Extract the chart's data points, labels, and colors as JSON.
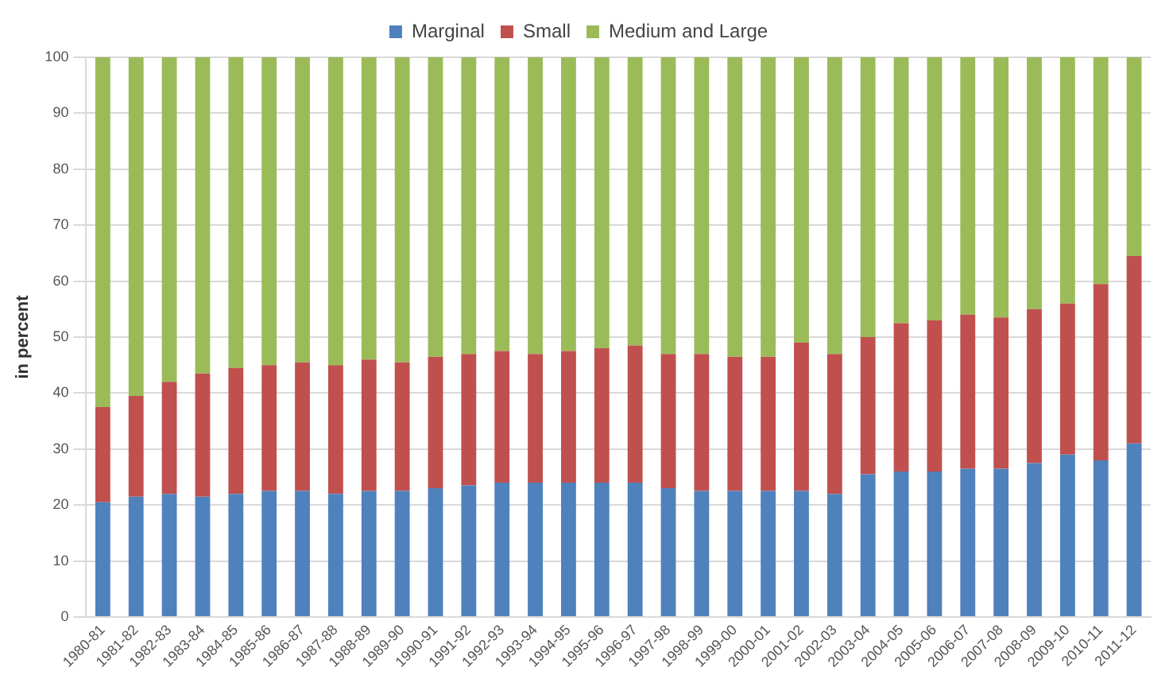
{
  "chart_data": {
    "type": "bar",
    "stacked": true,
    "ylabel": "in percent",
    "categories": [
      "1980-81",
      "1981-82",
      "1982-83",
      "1983-84",
      "1984-85",
      "1985-86",
      "1986-87",
      "1987-88",
      "1988-89",
      "1989-90",
      "1990-91",
      "1991-92",
      "1992-93",
      "1993-94",
      "1994-95",
      "1995-96",
      "1996-97",
      "1997-98",
      "1998-99",
      "1999-00",
      "2000-01",
      "2001-02",
      "2002-03",
      "2003-04",
      "2004-05",
      "2005-06",
      "2006-07",
      "2007-08",
      "2008-09",
      "2009-10",
      "2010-11",
      "2011-12"
    ],
    "series": [
      {
        "name": "Marginal",
        "color": "#4f81bd",
        "values": [
          20.5,
          21.5,
          22,
          21.5,
          22,
          22.5,
          22.5,
          22,
          22.5,
          22.5,
          23,
          23.5,
          24,
          24,
          24,
          24,
          24,
          23,
          22.5,
          22.5,
          22.5,
          22.5,
          22,
          25.5,
          26,
          26,
          26.5,
          26.5,
          27.5,
          29,
          28,
          31
        ]
      },
      {
        "name": "Small",
        "color": "#c0504d",
        "values": [
          17,
          18,
          20,
          22,
          22.5,
          22.5,
          23,
          23,
          23.5,
          23,
          23.5,
          23.5,
          23.5,
          23,
          23.5,
          24,
          24.5,
          24,
          24.5,
          24,
          24,
          26.5,
          25,
          24.5,
          26.5,
          27,
          27.5,
          27,
          27.5,
          27,
          31.5,
          33.5
        ]
      },
      {
        "name": "Medium and Large",
        "color": "#9bbb59",
        "values": [
          62.5,
          60.5,
          58,
          56.5,
          55.5,
          55,
          54.5,
          55,
          54,
          54.5,
          53.5,
          53,
          52.5,
          53,
          52.5,
          52,
          51.5,
          53,
          53,
          53.5,
          53.5,
          51,
          53,
          50,
          47.5,
          47,
          46,
          46.5,
          45,
          44,
          40.5,
          35.5
        ]
      }
    ],
    "ylim": [
      0,
      100
    ],
    "yticks": [
      0,
      10,
      20,
      30,
      40,
      50,
      60,
      70,
      80,
      90,
      100
    ],
    "grid": "y",
    "legend": "top"
  }
}
